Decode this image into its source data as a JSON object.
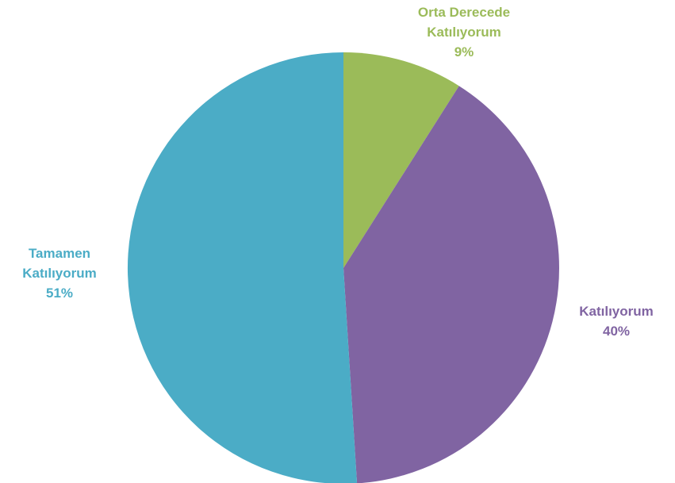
{
  "chart_data": {
    "type": "pie",
    "title": "",
    "start_angle_deg": 0,
    "direction": "clockwise",
    "slices": [
      {
        "label_lines": [
          "Orta Derecede",
          "Katılıyorum"
        ],
        "percent_label": "9%",
        "value": 9,
        "color": "#9BBB59"
      },
      {
        "label_lines": [
          "Katılıyorum"
        ],
        "percent_label": "40%",
        "value": 40,
        "color": "#8064A2"
      },
      {
        "label_lines": [
          "Tamamen",
          "Katılıyorum"
        ],
        "percent_label": "51%",
        "value": 51,
        "color": "#4BACC6"
      }
    ],
    "legend": "none",
    "data_labels": "outside, category name and percentage, colored like slice"
  }
}
